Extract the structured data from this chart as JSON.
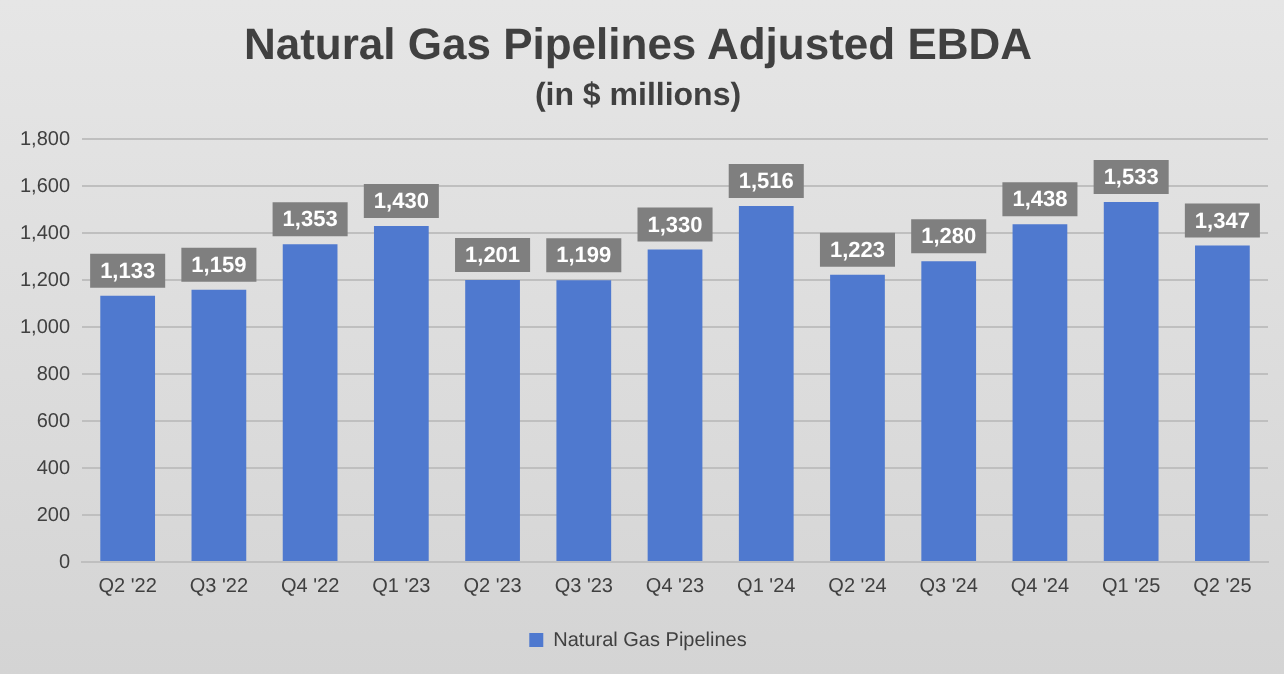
{
  "chart_data": {
    "type": "bar",
    "title": "Natural Gas Pipelines Adjusted EBDA",
    "subtitle": "(in $ millions)",
    "categories": [
      "Q2 '22",
      "Q3 '22",
      "Q4 '22",
      "Q1 '23",
      "Q2 '23",
      "Q3 '23",
      "Q4 '23",
      "Q1 '24",
      "Q2 '24",
      "Q3 '24",
      "Q4 '24",
      "Q1 '25",
      "Q2 '25"
    ],
    "series": [
      {
        "name": "Natural Gas Pipelines",
        "color": "#4f79cf",
        "values": [
          1133,
          1159,
          1353,
          1430,
          1201,
          1199,
          1330,
          1516,
          1223,
          1280,
          1438,
          1533,
          1347
        ],
        "value_labels": [
          "1,133",
          "1,159",
          "1,353",
          "1,430",
          "1,201",
          "1,199",
          "1,330",
          "1,516",
          "1,223",
          "1,280",
          "1,438",
          "1,533",
          "1,347"
        ]
      }
    ],
    "ylim": [
      0,
      1800
    ],
    "yticks": [
      0,
      {
        "value": 200,
        "label": "200"
      },
      {
        "value": 400,
        "label": "400"
      },
      {
        "value": 600,
        "label": "600"
      },
      {
        "value": 800,
        "label": "800"
      },
      {
        "value": 1000,
        "label": "1,000"
      },
      {
        "value": 1200,
        "label": "1,200"
      },
      {
        "value": 1400,
        "label": "1,400"
      },
      {
        "value": 1600,
        "label": "1,600"
      },
      {
        "value": 1800,
        "label": "1,800"
      }
    ],
    "grid": "y",
    "legend": "bottom"
  }
}
